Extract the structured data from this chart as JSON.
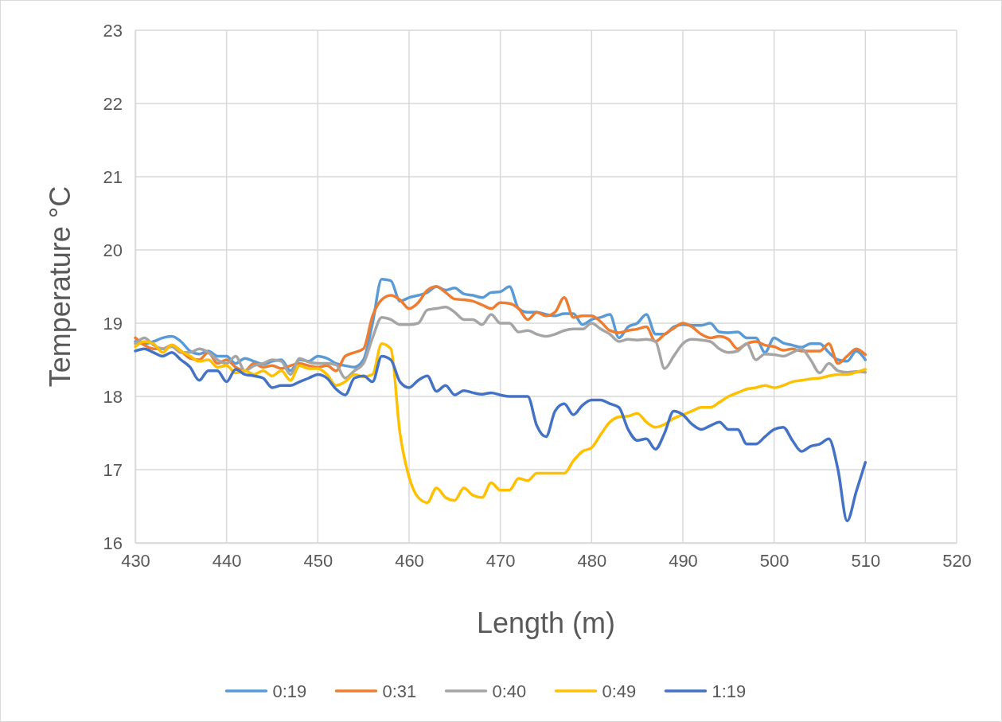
{
  "chart_data": {
    "type": "line",
    "xlabel": "Length (m)",
    "ylabel": "Temperature °C",
    "x": [
      430,
      431,
      432,
      433,
      434,
      435,
      436,
      437,
      438,
      439,
      440,
      441,
      442,
      443,
      444,
      445,
      446,
      447,
      448,
      449,
      450,
      451,
      452,
      453,
      454,
      455,
      456,
      457,
      458,
      459,
      460,
      461,
      462,
      463,
      464,
      465,
      466,
      467,
      468,
      469,
      470,
      471,
      472,
      473,
      474,
      475,
      476,
      477,
      478,
      479,
      480,
      481,
      482,
      483,
      484,
      485,
      486,
      487,
      488,
      489,
      490,
      491,
      492,
      493,
      494,
      495,
      496,
      497,
      498,
      499,
      500,
      501,
      502,
      503,
      504,
      505,
      506,
      507,
      508,
      509,
      510
    ],
    "xlim": [
      430,
      520
    ],
    "xticks": [
      430,
      440,
      450,
      460,
      470,
      480,
      490,
      500,
      510,
      520
    ],
    "ylim": [
      16,
      23
    ],
    "yticks": [
      16,
      17,
      18,
      19,
      20,
      21,
      22,
      23
    ],
    "grid": true,
    "legend": "bottom",
    "marker": "none",
    "line_style": "solid",
    "series": [
      {
        "name": "0:19",
        "color": "#5b9bd5",
        "values": [
          18.75,
          18.72,
          18.75,
          18.8,
          18.82,
          18.75,
          18.62,
          18.58,
          18.62,
          18.55,
          18.55,
          18.45,
          18.52,
          18.48,
          18.44,
          18.48,
          18.5,
          18.35,
          18.5,
          18.48,
          18.55,
          18.52,
          18.45,
          18.42,
          18.4,
          18.5,
          19.0,
          19.6,
          19.58,
          19.3,
          19.35,
          19.38,
          19.42,
          19.5,
          19.45,
          19.48,
          19.4,
          19.38,
          19.35,
          19.42,
          19.43,
          19.5,
          19.2,
          19.15,
          19.15,
          19.12,
          19.1,
          19.13,
          19.13,
          18.98,
          19.05,
          19.08,
          19.12,
          18.8,
          18.95,
          19.0,
          19.12,
          18.85,
          18.85,
          18.95,
          18.98,
          18.97,
          18.97,
          19.0,
          18.88,
          18.87,
          18.88,
          18.8,
          18.8,
          18.6,
          18.8,
          18.73,
          18.7,
          18.67,
          18.72,
          18.72,
          18.6,
          18.5,
          18.48,
          18.62,
          18.5
        ]
      },
      {
        "name": "0:31",
        "color": "#ed7d31",
        "values": [
          18.8,
          18.7,
          18.65,
          18.65,
          18.7,
          18.62,
          18.52,
          18.5,
          18.6,
          18.45,
          18.5,
          18.4,
          18.35,
          18.45,
          18.4,
          18.42,
          18.38,
          18.42,
          18.45,
          18.42,
          18.4,
          18.42,
          18.35,
          18.55,
          18.6,
          18.65,
          19.1,
          19.32,
          19.38,
          19.32,
          19.2,
          19.28,
          19.45,
          19.5,
          19.42,
          19.33,
          19.32,
          19.3,
          19.25,
          19.2,
          19.28,
          19.27,
          19.2,
          19.05,
          19.15,
          19.1,
          19.15,
          19.35,
          19.08,
          19.1,
          19.1,
          19.02,
          18.9,
          18.87,
          18.9,
          18.92,
          18.95,
          18.75,
          18.85,
          18.93,
          19.0,
          18.95,
          18.85,
          18.8,
          18.82,
          18.78,
          18.65,
          18.72,
          18.75,
          18.7,
          18.68,
          18.63,
          18.65,
          18.62,
          18.62,
          18.62,
          18.72,
          18.45,
          18.55,
          18.65,
          18.57
        ]
      },
      {
        "name": "0:40",
        "color": "#a5a5a5",
        "values": [
          18.72,
          18.8,
          18.7,
          18.65,
          18.68,
          18.6,
          18.6,
          18.65,
          18.6,
          18.5,
          18.45,
          18.55,
          18.35,
          18.42,
          18.45,
          18.5,
          18.48,
          18.3,
          18.52,
          18.47,
          18.45,
          18.45,
          18.43,
          18.25,
          18.35,
          18.45,
          18.8,
          19.08,
          19.05,
          18.98,
          18.98,
          19.0,
          19.18,
          19.2,
          19.22,
          19.15,
          19.05,
          19.05,
          18.98,
          19.12,
          19.0,
          19.0,
          18.88,
          18.9,
          18.85,
          18.82,
          18.85,
          18.9,
          18.92,
          18.92,
          19.0,
          18.92,
          18.85,
          18.75,
          18.78,
          18.77,
          18.78,
          18.75,
          18.38,
          18.55,
          18.72,
          18.78,
          18.77,
          18.75,
          18.65,
          18.6,
          18.62,
          18.72,
          18.5,
          18.58,
          18.57,
          18.55,
          18.6,
          18.65,
          18.5,
          18.32,
          18.45,
          18.35,
          18.33,
          18.34,
          18.33
        ]
      },
      {
        "name": "0:49",
        "color": "#ffc000",
        "values": [
          18.68,
          18.75,
          18.72,
          18.6,
          18.7,
          18.62,
          18.55,
          18.48,
          18.5,
          18.4,
          18.42,
          18.32,
          18.35,
          18.3,
          18.35,
          18.28,
          18.35,
          18.22,
          18.42,
          18.38,
          18.38,
          18.3,
          18.15,
          18.2,
          18.3,
          18.27,
          18.3,
          18.72,
          18.65,
          17.5,
          16.9,
          16.62,
          16.55,
          16.75,
          16.62,
          16.58,
          16.75,
          16.65,
          16.62,
          16.82,
          16.72,
          16.72,
          16.88,
          16.85,
          16.95,
          16.95,
          16.95,
          16.95,
          17.12,
          17.25,
          17.3,
          17.48,
          17.65,
          17.72,
          17.73,
          17.77,
          17.65,
          17.58,
          17.62,
          17.7,
          17.75,
          17.8,
          17.85,
          17.85,
          17.92,
          18.0,
          18.05,
          18.1,
          18.12,
          18.15,
          18.12,
          18.15,
          18.2,
          18.22,
          18.24,
          18.25,
          18.28,
          18.3,
          18.3,
          18.33,
          18.37
        ]
      },
      {
        "name": "1:19",
        "color": "#4472c4",
        "values": [
          18.62,
          18.65,
          18.6,
          18.55,
          18.6,
          18.5,
          18.4,
          18.22,
          18.35,
          18.35,
          18.2,
          18.37,
          18.3,
          18.28,
          18.25,
          18.12,
          18.15,
          18.15,
          18.2,
          18.25,
          18.3,
          18.25,
          18.1,
          18.02,
          18.25,
          18.28,
          18.2,
          18.55,
          18.5,
          18.2,
          18.12,
          18.22,
          18.28,
          18.07,
          18.15,
          18.02,
          18.08,
          18.05,
          18.03,
          18.05,
          18.02,
          18.0,
          18.0,
          18.0,
          17.6,
          17.45,
          17.8,
          17.9,
          17.75,
          17.88,
          17.95,
          17.95,
          17.9,
          17.85,
          17.55,
          17.4,
          17.42,
          17.28,
          17.5,
          17.8,
          17.75,
          17.62,
          17.55,
          17.6,
          17.65,
          17.55,
          17.55,
          17.35,
          17.35,
          17.45,
          17.55,
          17.58,
          17.4,
          17.25,
          17.32,
          17.35,
          17.42,
          17.0,
          16.3,
          16.7,
          17.1
        ]
      }
    ]
  }
}
